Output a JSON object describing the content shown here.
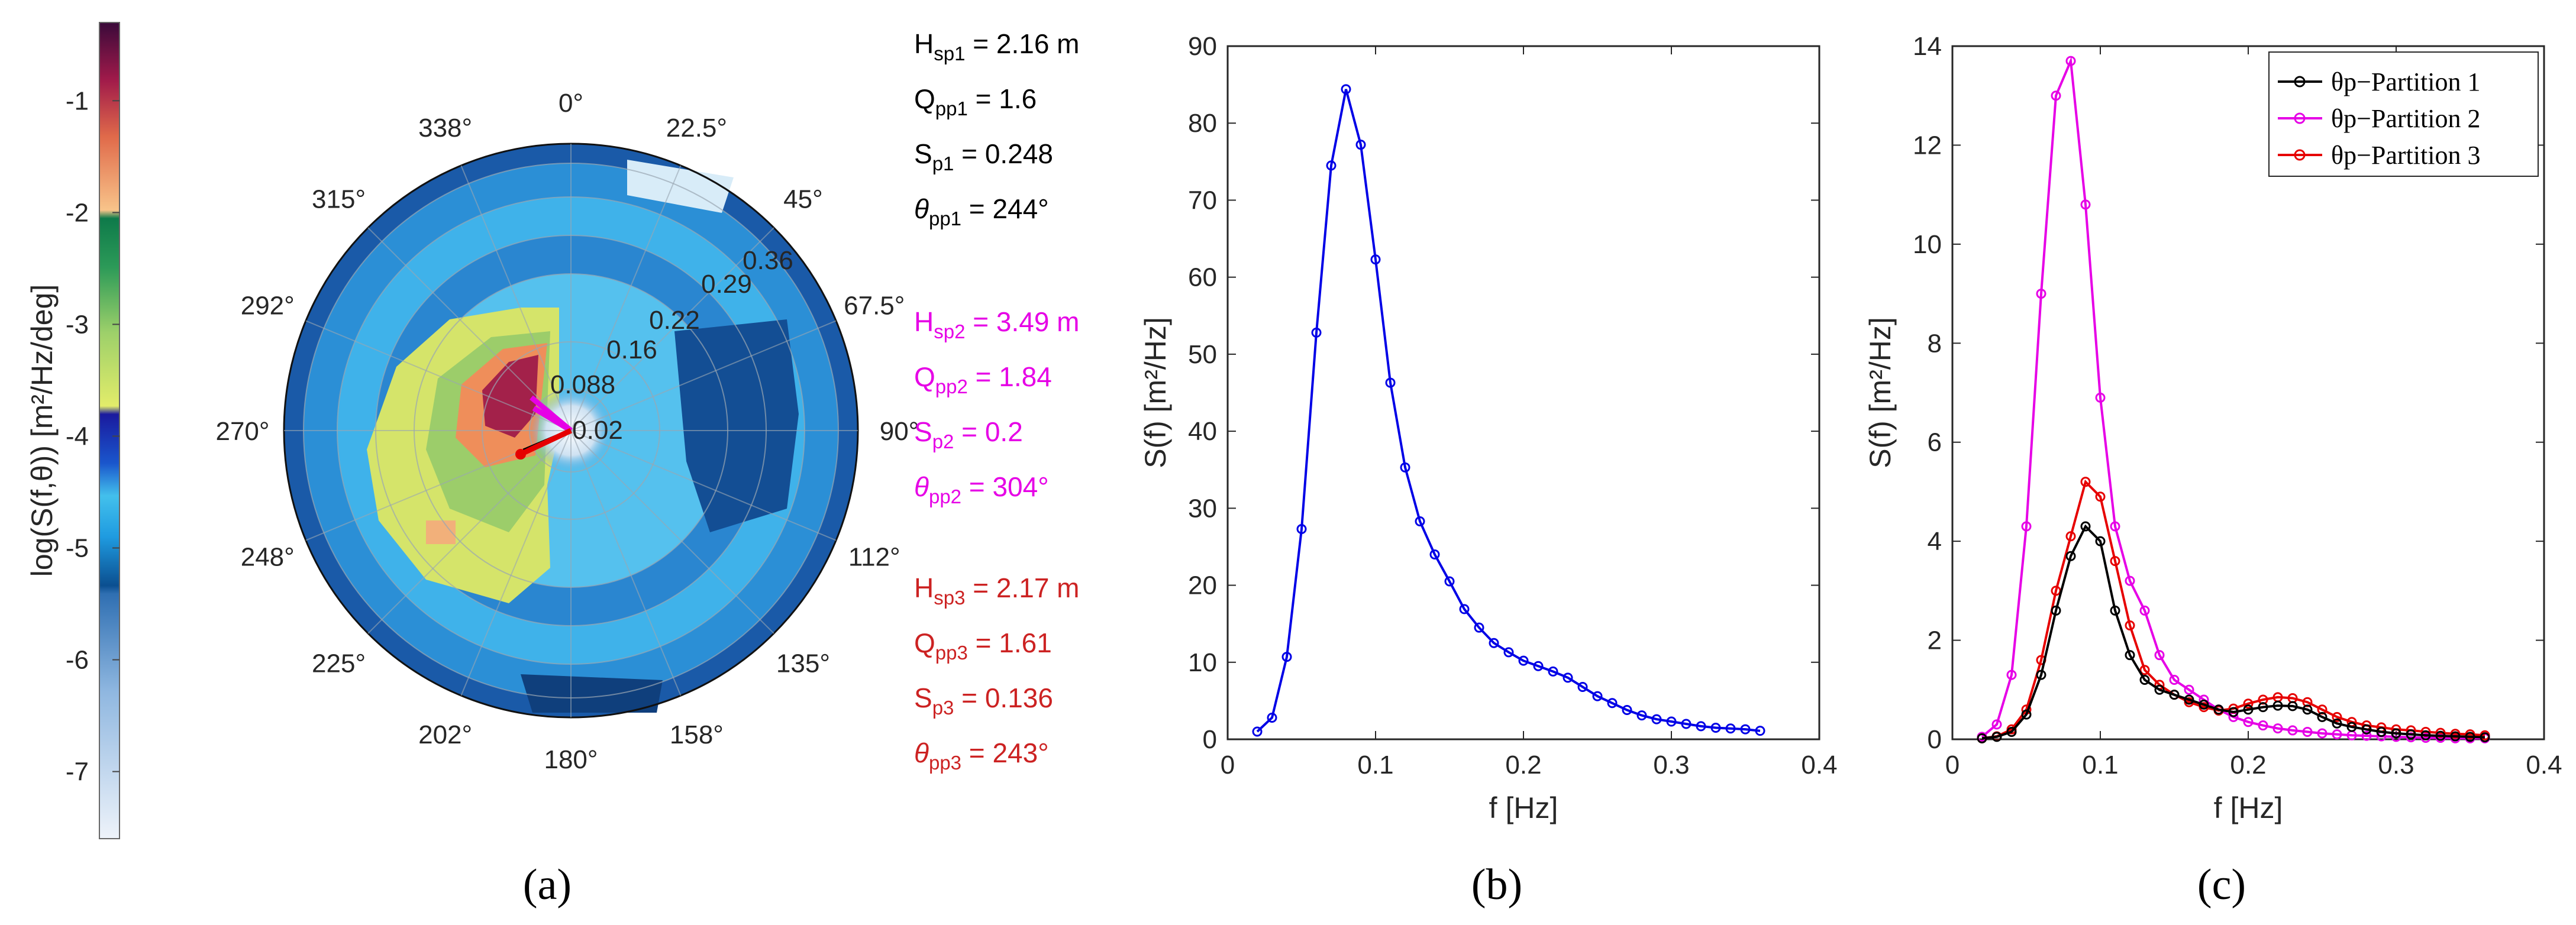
{
  "colors": {
    "blue": "#0000e6",
    "black": "#000000",
    "magenta": "#e600e6",
    "red": "#e60000",
    "p3text": "#cc2222"
  },
  "chart_data": [
    {
      "id": "a",
      "type": "heatmap",
      "caption": "(a)",
      "colorbar": {
        "label": "log(S(f,θ)) [m²/Hz/deg]",
        "ticks": [
          "-1",
          "-2",
          "-3",
          "-4",
          "-5",
          "-6",
          "-7"
        ],
        "range": [
          -7.6,
          -0.3
        ]
      },
      "angle_labels": [
        "0°",
        "22.5°",
        "45°",
        "67.5°",
        "90°",
        "112°",
        "135°",
        "158°",
        "180°",
        "202°",
        "225°",
        "248°",
        "270°",
        "292°",
        "315°",
        "338°"
      ],
      "radius_labels": [
        "0.02",
        "0.088",
        "0.16",
        "0.22",
        "0.29",
        "0.36"
      ],
      "partitions": [
        {
          "lines": [
            {
              "label": "Hsp1",
              "sub": "sp1",
              "value": "2.16 m"
            },
            {
              "label": "Qpp1",
              "sub": "pp1",
              "value": "1.6"
            },
            {
              "label": "Sp1",
              "sub": "p1",
              "value": "0.248"
            },
            {
              "label": "θpp1",
              "sub": "pp1",
              "value": "244°"
            }
          ]
        },
        {
          "lines": [
            {
              "label": "Hsp2",
              "sub": "sp2",
              "value": "3.49 m"
            },
            {
              "label": "Qpp2",
              "sub": "pp2",
              "value": "1.84"
            },
            {
              "label": "Sp2",
              "sub": "p2",
              "value": "0.2"
            },
            {
              "label": "θpp2",
              "sub": "pp2",
              "value": "304°"
            }
          ]
        },
        {
          "lines": [
            {
              "label": "Hsp3",
              "sub": "sp3",
              "value": "2.17 m"
            },
            {
              "label": "Qpp3",
              "sub": "pp3",
              "value": "1.61"
            },
            {
              "label": "Sp3",
              "sub": "p3",
              "value": "0.136"
            },
            {
              "label": "θpp3",
              "sub": "pp3",
              "value": "243°"
            }
          ]
        }
      ]
    },
    {
      "id": "b",
      "type": "line",
      "caption": "(b)",
      "xlabel": "f [Hz]",
      "ylabel": "S(f)  [m²/Hz]",
      "xlim": [
        0,
        0.4
      ],
      "ylim": [
        0,
        90
      ],
      "xticks": [
        "0",
        "0.1",
        "0.2",
        "0.3",
        "0.4"
      ],
      "yticks": [
        "0",
        "10",
        "20",
        "30",
        "40",
        "50",
        "60",
        "70",
        "80",
        "90"
      ],
      "series": [
        {
          "name": "S(f)",
          "x": [
            0.02,
            0.03,
            0.04,
            0.05,
            0.06,
            0.07,
            0.08,
            0.09,
            0.1,
            0.11,
            0.12,
            0.13,
            0.14,
            0.15,
            0.16,
            0.17,
            0.18,
            0.19,
            0.2,
            0.21,
            0.22,
            0.23,
            0.24,
            0.25,
            0.26,
            0.27,
            0.28,
            0.29,
            0.3,
            0.31,
            0.32,
            0.33,
            0.34,
            0.35,
            0.36
          ],
          "values": [
            1,
            2.8,
            10.7,
            27.3,
            52.8,
            74.5,
            84.4,
            77.2,
            62.3,
            46.3,
            35.3,
            28.3,
            24,
            20.5,
            16.9,
            14.5,
            12.5,
            11.3,
            10.2,
            9.5,
            8.8,
            8,
            6.8,
            5.6,
            4.7,
            3.8,
            3.1,
            2.6,
            2.3,
            2,
            1.7,
            1.5,
            1.4,
            1.3,
            1.1
          ]
        }
      ]
    },
    {
      "id": "c",
      "type": "line",
      "caption": "(c)",
      "xlabel": "f [Hz]",
      "ylabel": "S(f)  [m²/Hz]",
      "xlim": [
        0,
        0.4
      ],
      "ylim": [
        0,
        14
      ],
      "xticks": [
        "0",
        "0.1",
        "0.2",
        "0.3",
        "0.4"
      ],
      "yticks": [
        "0",
        "2",
        "4",
        "6",
        "8",
        "10",
        "12",
        "14"
      ],
      "legend": "top-right",
      "x": [
        0.02,
        0.03,
        0.04,
        0.05,
        0.06,
        0.07,
        0.08,
        0.09,
        0.1,
        0.11,
        0.12,
        0.13,
        0.14,
        0.15,
        0.16,
        0.17,
        0.18,
        0.19,
        0.2,
        0.21,
        0.22,
        0.23,
        0.24,
        0.25,
        0.26,
        0.27,
        0.28,
        0.29,
        0.3,
        0.31,
        0.32,
        0.33,
        0.34,
        0.35,
        0.36
      ],
      "series": [
        {
          "name": "θp−Partition 1",
          "color": "#000000",
          "values": [
            0.02,
            0.05,
            0.15,
            0.5,
            1.3,
            2.6,
            3.7,
            4.3,
            4,
            2.6,
            1.7,
            1.2,
            1,
            0.9,
            0.8,
            0.7,
            0.6,
            0.55,
            0.6,
            0.65,
            0.68,
            0.67,
            0.6,
            0.45,
            0.32,
            0.25,
            0.2,
            0.15,
            0.12,
            0.1,
            0.08,
            0.07,
            0.06,
            0.05,
            0.04
          ]
        },
        {
          "name": "θp−Partition 2",
          "color": "#e600e6",
          "values": [
            0.05,
            0.3,
            1.3,
            4.3,
            9,
            13,
            13.7,
            10.8,
            6.9,
            4.3,
            3.2,
            2.6,
            1.7,
            1.2,
            1,
            0.8,
            0.6,
            0.45,
            0.35,
            0.28,
            0.22,
            0.18,
            0.15,
            0.12,
            0.1,
            0.08,
            0.07,
            0.06,
            0.05,
            0.04,
            0.03,
            0.03,
            0.02,
            0.02,
            0.02
          ]
        },
        {
          "name": "θp−Partition 3",
          "color": "#e60000",
          "values": [
            0.02,
            0.06,
            0.2,
            0.6,
            1.6,
            3,
            4.1,
            5.2,
            4.9,
            3.6,
            2.3,
            1.4,
            1.1,
            0.9,
            0.75,
            0.65,
            0.58,
            0.62,
            0.72,
            0.8,
            0.85,
            0.83,
            0.75,
            0.6,
            0.45,
            0.35,
            0.28,
            0.24,
            0.2,
            0.18,
            0.15,
            0.13,
            0.11,
            0.1,
            0.08
          ]
        }
      ]
    }
  ]
}
